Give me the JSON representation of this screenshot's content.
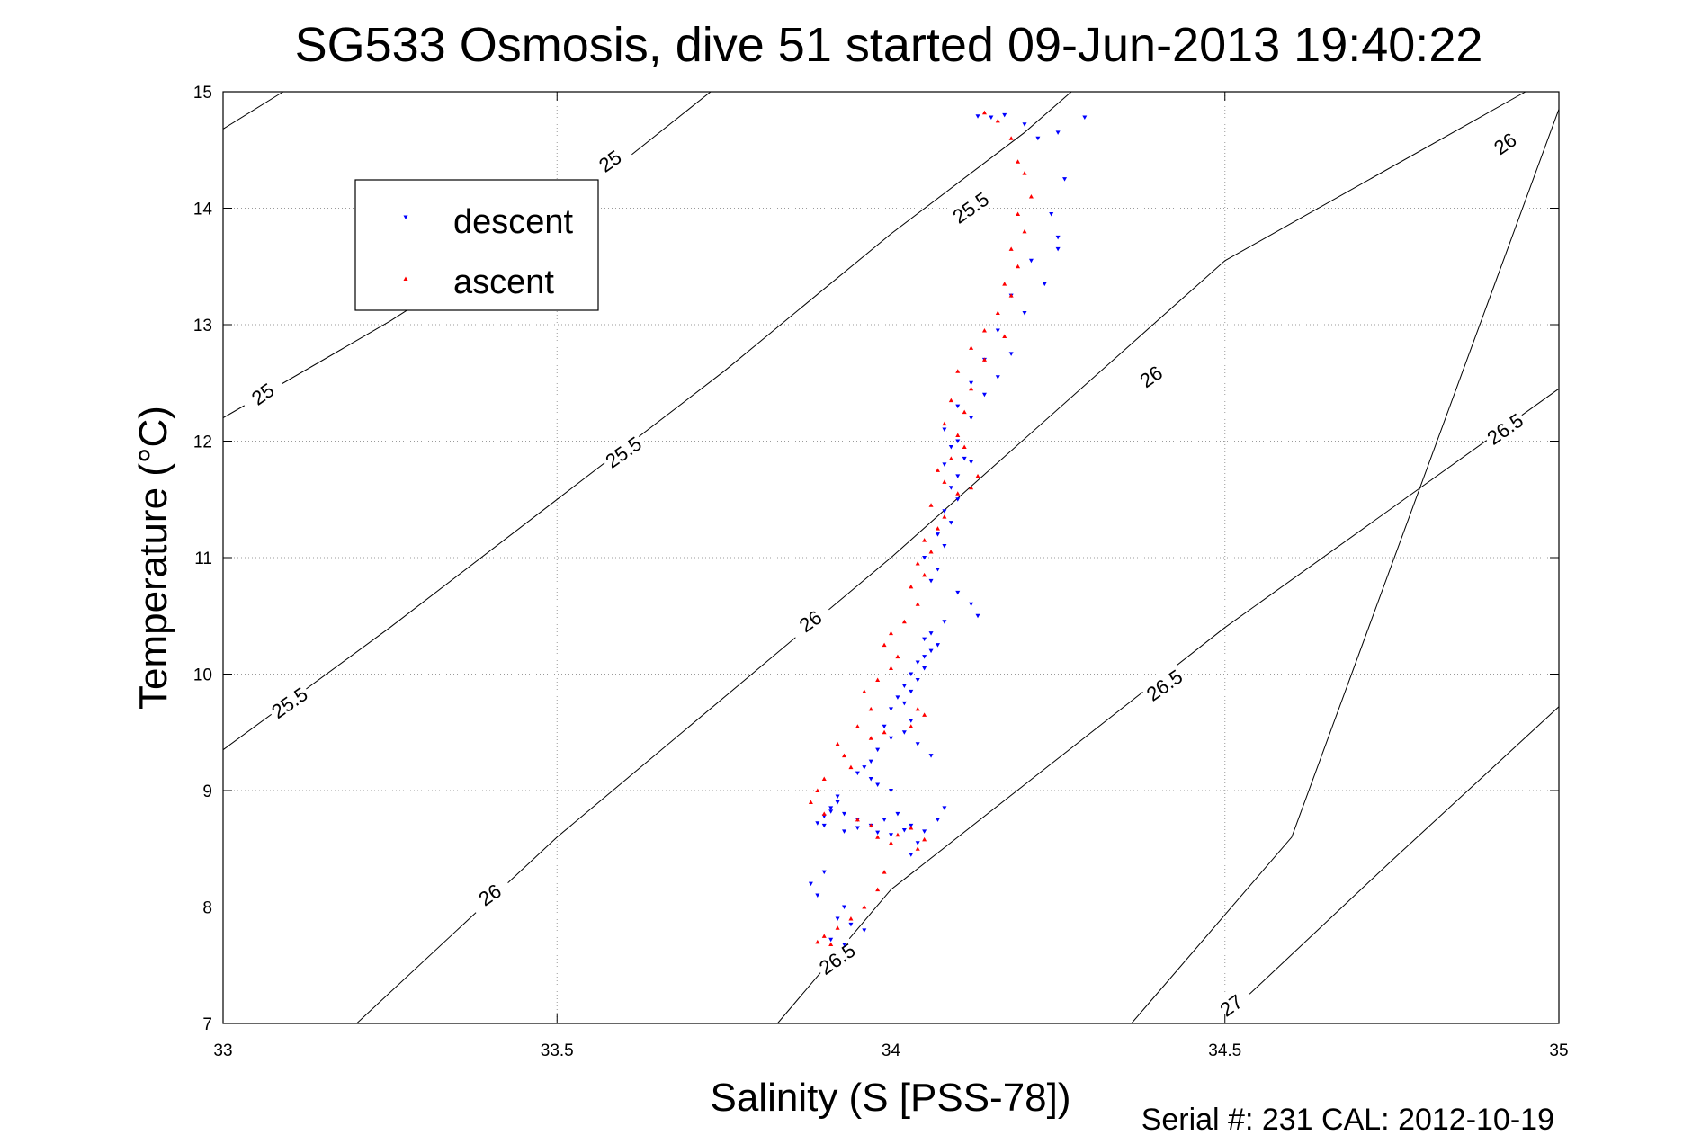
{
  "chart_data": {
    "type": "scatter",
    "title": "SG533 Osmosis, dive 51 started 09-Jun-2013 19:40:22",
    "xlabel": "Salinity (S [PSS-78])",
    "ylabel": "Temperature (°C)",
    "xlim": [
      33,
      35
    ],
    "ylim": [
      7,
      15
    ],
    "xticks": [
      "33",
      "33.5",
      "34",
      "34.5",
      "35"
    ],
    "yticks": [
      "7",
      "8",
      "9",
      "10",
      "11",
      "12",
      "13",
      "14",
      "15"
    ],
    "grid": true,
    "legend_position": "top-left",
    "footer": "Serial #: 231  CAL: 2012-10-19",
    "contours": [
      {
        "level": "25",
        "points": [
          [
            33,
            14.68
          ],
          [
            33.09,
            15
          ]
        ]
      },
      {
        "level": "25",
        "points": [
          [
            33,
            12.2
          ],
          [
            33.25,
            13.03
          ],
          [
            33.5,
            13.95
          ],
          [
            33.73,
            15
          ]
        ]
      },
      {
        "level": "25.5",
        "points": [
          [
            33,
            9.35
          ],
          [
            33.25,
            10.4
          ],
          [
            33.5,
            11.5
          ],
          [
            33.75,
            12.6
          ],
          [
            34,
            13.78
          ],
          [
            34.2,
            14.65
          ],
          [
            34.27,
            15
          ]
        ]
      },
      {
        "level": "26",
        "points": [
          [
            33.2,
            7
          ],
          [
            33.5,
            8.6
          ],
          [
            34,
            11.0
          ],
          [
            34.5,
            13.55
          ],
          [
            34.95,
            15
          ]
        ]
      },
      {
        "level": "26",
        "points": [
          [
            34.36,
            7
          ],
          [
            34.6,
            8.6
          ],
          [
            35,
            14.85
          ]
        ]
      },
      {
        "level": "26.5",
        "points": [
          [
            33.83,
            7
          ],
          [
            34.0,
            8.15
          ],
          [
            34.5,
            10.4
          ],
          [
            35,
            12.45
          ]
        ]
      },
      {
        "level": "27",
        "points": [
          [
            34.49,
            7
          ],
          [
            34.75,
            8.4
          ],
          [
            35,
            9.72
          ]
        ]
      }
    ],
    "contour_labels": [
      {
        "text": "25",
        "x": 33.58,
        "t": 14.4
      },
      {
        "text": "25",
        "x": 33.06,
        "t": 12.4
      },
      {
        "text": "25.5",
        "x": 34.12,
        "t": 14.0
      },
      {
        "text": "25.5",
        "x": 33.6,
        "t": 11.9
      },
      {
        "text": "25.5",
        "x": 33.1,
        "t": 9.75
      },
      {
        "text": "26",
        "x": 34.39,
        "t": 12.55
      },
      {
        "text": "26",
        "x": 33.88,
        "t": 10.45
      },
      {
        "text": "26",
        "x": 33.4,
        "t": 8.1
      },
      {
        "text": "26",
        "x": 34.92,
        "t": 14.55
      },
      {
        "text": "26.5",
        "x": 34.92,
        "t": 12.1
      },
      {
        "text": "26.5",
        "x": 34.41,
        "t": 9.9
      },
      {
        "text": "26.5",
        "x": 33.92,
        "t": 7.55
      },
      {
        "text": "27",
        "x": 34.51,
        "t": 7.15
      }
    ],
    "series": [
      {
        "name": "descent",
        "color": "#0000ff",
        "marker": "triangle-down",
        "x": [
          34.13,
          34.15,
          34.17,
          34.2,
          34.22,
          34.25,
          34.29,
          34.26,
          34.24,
          34.25,
          34.21,
          34.23,
          34.25,
          34.18,
          34.2,
          34.16,
          34.18,
          34.14,
          34.16,
          34.12,
          34.14,
          34.1,
          34.12,
          34.08,
          34.1,
          34.09,
          34.11,
          34.08,
          34.1,
          34.12,
          34.09,
          34.1,
          34.08,
          34.09,
          34.07,
          34.08,
          34.05,
          34.07,
          34.06,
          34.1,
          34.12,
          34.13,
          34.08,
          34.06,
          34.05,
          34.07,
          34.06,
          34.05,
          34.04,
          34.05,
          34.03,
          34.04,
          34.02,
          34.03,
          34.01,
          34.02,
          34.0,
          34.03,
          34.02,
          34.04,
          34.06,
          33.99,
          34.0,
          33.98,
          33.97,
          33.96,
          33.95,
          33.97,
          33.98,
          34.0,
          33.92,
          33.91,
          33.93,
          33.95,
          33.9,
          33.92,
          33.93,
          33.89,
          33.9,
          33.91,
          33.95,
          33.98,
          34.0,
          34.02,
          33.97,
          33.99,
          34.01,
          34.03,
          34.05,
          34.07,
          34.08,
          34.04,
          34.03,
          33.9,
          33.88,
          33.89,
          33.93,
          33.92,
          33.94,
          33.96,
          33.91,
          33.93
        ],
        "y": [
          14.79,
          14.78,
          14.8,
          14.72,
          14.6,
          14.65,
          14.78,
          14.25,
          13.95,
          13.75,
          13.55,
          13.35,
          13.65,
          13.25,
          13.1,
          12.95,
          12.75,
          12.7,
          12.55,
          12.5,
          12.4,
          12.3,
          12.2,
          12.1,
          12.0,
          11.95,
          11.85,
          11.8,
          11.7,
          11.82,
          11.6,
          11.5,
          11.4,
          11.3,
          11.2,
          11.1,
          11.0,
          10.9,
          10.8,
          10.7,
          10.6,
          10.5,
          10.45,
          10.35,
          10.3,
          10.25,
          10.2,
          10.15,
          10.1,
          10.05,
          10.0,
          9.95,
          9.9,
          9.85,
          9.8,
          9.75,
          9.7,
          9.6,
          9.5,
          9.4,
          9.3,
          9.55,
          9.45,
          9.35,
          9.25,
          9.2,
          9.15,
          9.1,
          9.05,
          9.0,
          8.95,
          8.85,
          8.8,
          8.75,
          8.7,
          8.9,
          8.65,
          8.72,
          8.78,
          8.82,
          8.68,
          8.64,
          8.62,
          8.66,
          8.7,
          8.75,
          8.8,
          8.7,
          8.65,
          8.75,
          8.85,
          8.55,
          8.45,
          8.3,
          8.2,
          8.1,
          8.0,
          7.9,
          7.85,
          7.8,
          7.72,
          7.68
        ]
      },
      {
        "name": "ascent",
        "color": "#ff0000",
        "marker": "triangle-up",
        "x": [
          34.14,
          34.16,
          34.18,
          34.19,
          34.2,
          34.21,
          34.19,
          34.2,
          34.18,
          34.19,
          34.17,
          34.18,
          34.16,
          34.14,
          34.17,
          34.12,
          34.14,
          34.1,
          34.12,
          34.09,
          34.11,
          34.08,
          34.1,
          34.11,
          34.09,
          34.07,
          34.08,
          34.1,
          34.12,
          34.13,
          34.06,
          34.08,
          34.07,
          34.05,
          34.06,
          34.04,
          34.05,
          34.03,
          34.04,
          34.02,
          34.0,
          33.99,
          34.01,
          34.0,
          33.98,
          33.96,
          33.97,
          33.95,
          33.97,
          33.99,
          34.03,
          34.05,
          34.04,
          33.92,
          33.93,
          33.94,
          33.9,
          33.89,
          33.88,
          33.9,
          33.95,
          33.97,
          33.98,
          34.0,
          34.01,
          34.03,
          34.05,
          34.04,
          33.99,
          33.98,
          33.96,
          33.94,
          33.92,
          33.9,
          33.89,
          33.91
        ],
        "y": [
          14.82,
          14.75,
          14.6,
          14.4,
          14.3,
          14.1,
          13.95,
          13.8,
          13.65,
          13.5,
          13.35,
          13.25,
          13.1,
          12.95,
          12.9,
          12.8,
          12.7,
          12.6,
          12.45,
          12.35,
          12.25,
          12.15,
          12.05,
          11.95,
          11.85,
          11.75,
          11.65,
          11.55,
          11.6,
          11.7,
          11.45,
          11.35,
          11.25,
          11.15,
          11.05,
          10.95,
          10.85,
          10.75,
          10.6,
          10.45,
          10.35,
          10.25,
          10.15,
          10.05,
          9.95,
          9.85,
          9.7,
          9.55,
          9.45,
          9.5,
          9.55,
          9.65,
          9.7,
          9.4,
          9.3,
          9.2,
          9.1,
          9.0,
          8.9,
          8.8,
          8.75,
          8.7,
          8.6,
          8.55,
          8.62,
          8.68,
          8.58,
          8.5,
          8.3,
          8.15,
          8.0,
          7.9,
          7.82,
          7.75,
          7.7,
          7.68
        ]
      }
    ]
  }
}
